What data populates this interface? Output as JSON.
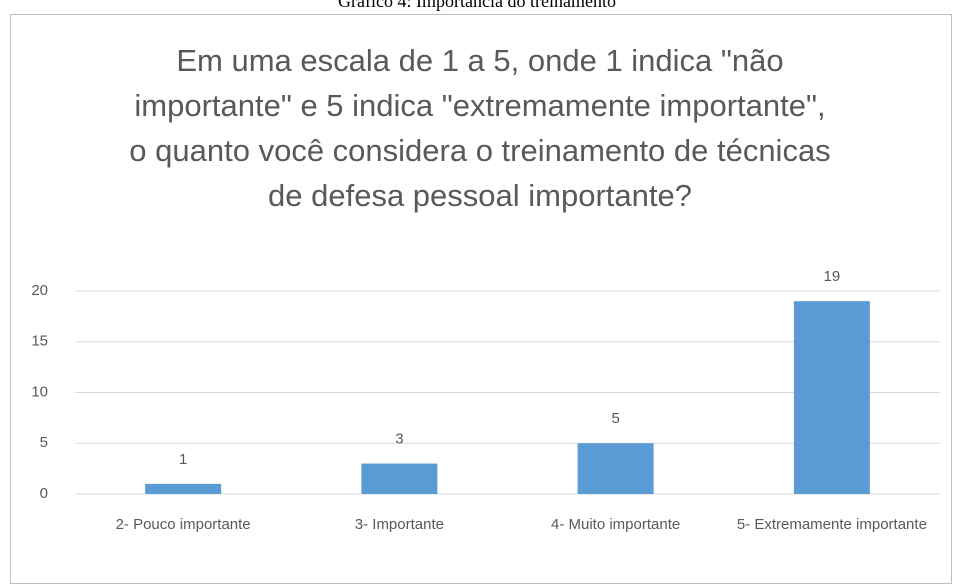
{
  "caption": "Gráfico 4: Importância do treinamento",
  "chart_data": {
    "type": "bar",
    "title": "Em uma escala de 1 a 5, onde 1 indica \"não importante\" e 5 indica \"extremamente importante\", o quanto você considera o treinamento de técnicas de defesa pessoal importante?",
    "categories": [
      "2- Pouco importante",
      "3- Importante",
      "4- Muito importante",
      "5- Extremamente importante"
    ],
    "values": [
      1,
      3,
      5,
      19
    ],
    "color": "#5b9bd5",
    "ylim": [
      0,
      20
    ],
    "yticks": [
      0,
      5,
      10,
      15,
      20
    ],
    "grid": true
  }
}
